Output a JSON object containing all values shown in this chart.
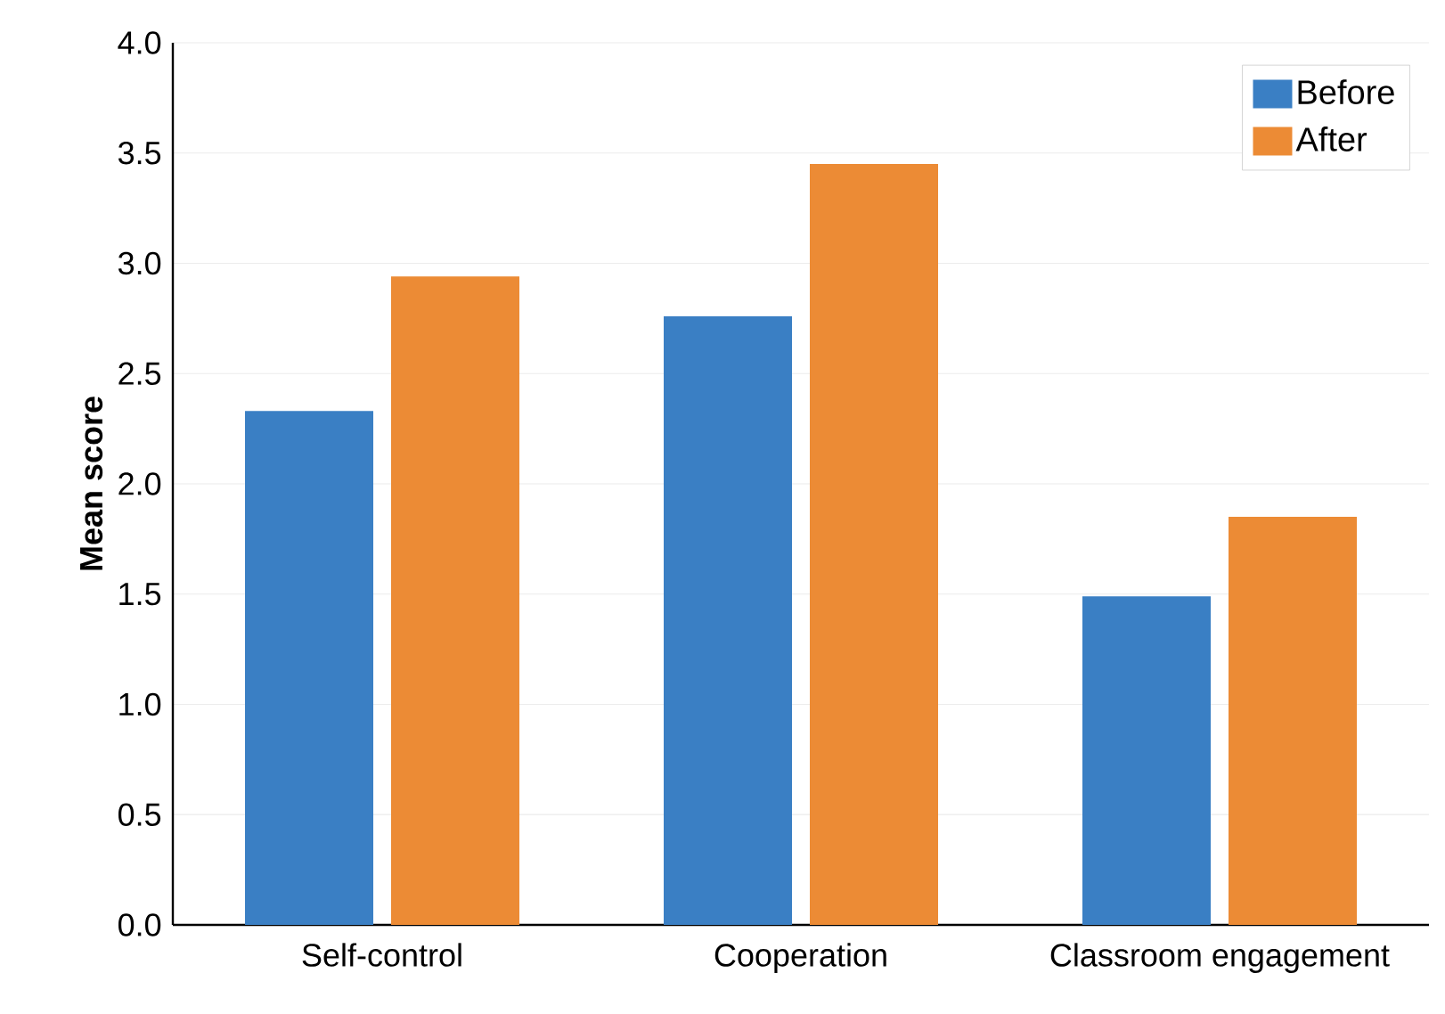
{
  "chart_data": {
    "type": "bar",
    "ylabel": "Mean score",
    "categories": [
      "Self-control",
      "Cooperation",
      "Classroom engagement"
    ],
    "series": [
      {
        "name": "Before",
        "color": "#3a7fc4",
        "values": [
          2.33,
          2.76,
          1.49
        ]
      },
      {
        "name": "After",
        "color": "#ec8b35",
        "values": [
          2.94,
          3.45,
          1.85
        ]
      }
    ],
    "ylim": [
      0,
      4
    ],
    "yticks": [
      {
        "value": 0,
        "label": "0.0"
      },
      {
        "value": 0.5,
        "label": "0.5"
      },
      {
        "value": 1,
        "label": "1.0"
      },
      {
        "value": 1.5,
        "label": "1.5"
      },
      {
        "value": 2,
        "label": "2.0"
      },
      {
        "value": 2.5,
        "label": "2.5"
      },
      {
        "value": 3,
        "label": "3.0"
      },
      {
        "value": 3.5,
        "label": "3.5"
      },
      {
        "value": 4,
        "label": "4.0"
      }
    ],
    "grid": "y",
    "legend": "top right"
  }
}
